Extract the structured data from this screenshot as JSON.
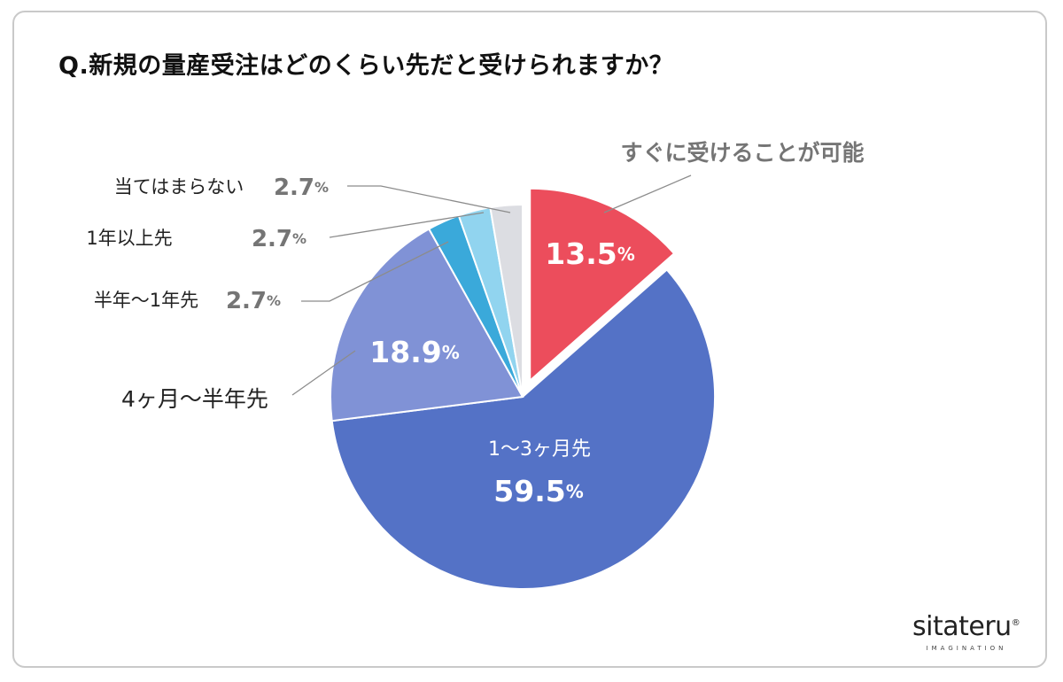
{
  "title": "Q.新規の量産受注はどのくらい先だと受けられますか？",
  "chart_data": {
    "type": "pie",
    "title": "Q.新規の量産受注はどのくらい先だと受けられますか？",
    "slices": [
      {
        "label": "すぐに受けることが可能",
        "value": 13.5,
        "value_text": "13.5",
        "unit": "%",
        "color": "#ec4d5c",
        "exploded": true
      },
      {
        "label": "1〜3ヶ月先",
        "value": 59.5,
        "value_text": "59.5",
        "unit": "%",
        "color": "#5472c6"
      },
      {
        "label": "4ヶ月〜半年先",
        "value": 18.9,
        "value_text": "18.9",
        "unit": "%",
        "color": "#8092d6"
      },
      {
        "label": "半年〜1年先",
        "value": 2.7,
        "value_text": "2.7",
        "unit": "%",
        "color": "#3aa9da"
      },
      {
        "label": "1年以上先",
        "value": 2.7,
        "value_text": "2.7",
        "unit": "%",
        "color": "#91d4ef"
      },
      {
        "label": "当てはまらない",
        "value": 2.7,
        "value_text": "2.7",
        "unit": "%",
        "color": "#dcdde2"
      }
    ]
  },
  "logo": {
    "name": "sitateru",
    "sub": "IMAGINATION",
    "mark": "®"
  },
  "colors": {
    "text_dark": "#222222",
    "text_gray": "#757575",
    "border": "#c9c9c9",
    "leader": "#8c8c8c"
  }
}
